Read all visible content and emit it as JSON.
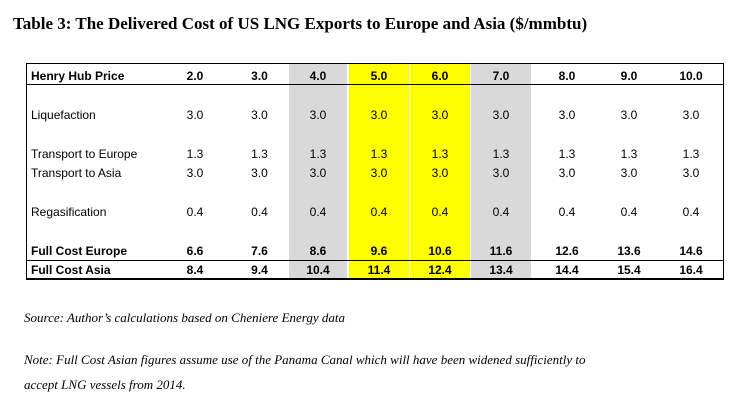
{
  "title": "Table 3: The Delivered Cost of US LNG Exports to Europe and Asia ($/mmbtu)",
  "columns": [
    {
      "highlight": "none"
    },
    {
      "highlight": "none"
    },
    {
      "highlight": "gray"
    },
    {
      "highlight": "yellow"
    },
    {
      "highlight": "yellow"
    },
    {
      "highlight": "gray"
    },
    {
      "highlight": "none"
    },
    {
      "highlight": "none"
    },
    {
      "highlight": "none"
    }
  ],
  "colors": {
    "gray": "#d9d9d9",
    "yellow": "#ffff00"
  },
  "rows": [
    {
      "label": "Henry Hub Price",
      "bold": true,
      "values": [
        "2.0",
        "3.0",
        "4.0",
        "5.0",
        "6.0",
        "7.0",
        "8.0",
        "9.0",
        "10.0"
      ]
    },
    {
      "label": "Liquefaction",
      "bold": false,
      "values": [
        "3.0",
        "3.0",
        "3.0",
        "3.0",
        "3.0",
        "3.0",
        "3.0",
        "3.0",
        "3.0"
      ]
    },
    {
      "label": "Transport to Europe",
      "bold": false,
      "values": [
        "1.3",
        "1.3",
        "1.3",
        "1.3",
        "1.3",
        "1.3",
        "1.3",
        "1.3",
        "1.3"
      ]
    },
    {
      "label": "Transport to Asia",
      "bold": false,
      "values": [
        "3.0",
        "3.0",
        "3.0",
        "3.0",
        "3.0",
        "3.0",
        "3.0",
        "3.0",
        "3.0"
      ]
    },
    {
      "label": "Regasification",
      "bold": false,
      "values": [
        "0.4",
        "0.4",
        "0.4",
        "0.4",
        "0.4",
        "0.4",
        "0.4",
        "0.4",
        "0.4"
      ]
    },
    {
      "label": "Full Cost Europe",
      "bold": true,
      "values": [
        "6.6",
        "7.6",
        "8.6",
        "9.6",
        "10.6",
        "11.6",
        "12.6",
        "13.6",
        "14.6"
      ]
    },
    {
      "label": "Full Cost Asia",
      "bold": true,
      "values": [
        "8.4",
        "9.4",
        "10.4",
        "11.4",
        "12.4",
        "13.4",
        "14.4",
        "15.4",
        "16.4"
      ]
    }
  ],
  "source_note": "Source: Author’s calculations based on Cheniere Energy data",
  "footnote_line1": "Note: Full Cost Asian figures assume use of the Panama Canal which will have been widened sufficiently to",
  "footnote_line2": "accept LNG vessels from 2014."
}
